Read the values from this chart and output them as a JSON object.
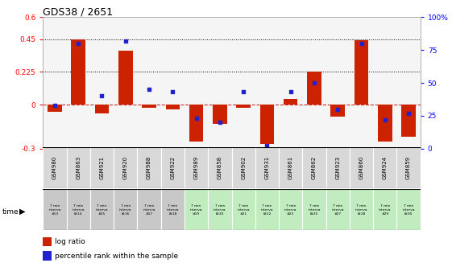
{
  "title": "GDS38 / 2651",
  "categories": [
    "GSM980",
    "GSM863",
    "GSM921",
    "GSM920",
    "GSM988",
    "GSM922",
    "GSM989",
    "GSM858",
    "GSM902",
    "GSM931",
    "GSM861",
    "GSM862",
    "GSM923",
    "GSM860",
    "GSM924",
    "GSM859"
  ],
  "time_lines": [
    [
      "7 min",
      "interva",
      "#13"
    ],
    [
      "7 min",
      "interva",
      "l#14"
    ],
    [
      "7 min",
      "interva",
      "#15"
    ],
    [
      "7 min",
      "interva",
      "l#16"
    ],
    [
      "7 min",
      "interva",
      "#17"
    ],
    [
      "7 min",
      "interva",
      "l#18"
    ],
    [
      "7 min",
      "interva",
      "#19"
    ],
    [
      "7 min",
      "interva",
      "l#20"
    ],
    [
      "7 min",
      "interva",
      "#21"
    ],
    [
      "7 min",
      "interva",
      "l#22"
    ],
    [
      "7 min",
      "interva",
      "#23"
    ],
    [
      "7 min",
      "interva",
      "l#25"
    ],
    [
      "7 min",
      "interva",
      "#27"
    ],
    [
      "7 min",
      "interva",
      "l#28"
    ],
    [
      "7 min",
      "interva",
      "#29"
    ],
    [
      "7 min",
      "interva",
      "l#30"
    ]
  ],
  "log_ratio": [
    -0.05,
    0.45,
    -0.06,
    0.37,
    -0.02,
    -0.03,
    -0.25,
    -0.13,
    -0.02,
    -0.27,
    0.04,
    0.225,
    -0.08,
    0.44,
    -0.25,
    -0.22
  ],
  "percentile_rank": [
    33,
    80,
    40,
    82,
    45,
    43,
    23,
    20,
    43,
    2,
    43,
    50,
    30,
    80,
    22,
    27
  ],
  "bar_color": "#cc2200",
  "square_color": "#2222cc",
  "bg_color": "#f5f5f5",
  "ylim_left": [
    -0.3,
    0.6
  ],
  "ylim_right": [
    0,
    100
  ],
  "hline_y": [
    0.45,
    0.225
  ],
  "zero_line_color": "#cc3333",
  "left_ticks": [
    -0.3,
    0,
    0.225,
    0.45,
    0.6
  ],
  "right_ticks": [
    0,
    25,
    50,
    75,
    100
  ],
  "legend_items": [
    "log ratio",
    "percentile rank within the sample"
  ],
  "legend_colors": [
    "#cc2200",
    "#2222cc"
  ],
  "gsm_bg": "#d8d8d8",
  "time_bg_gray": "#c8c8c8",
  "time_bg_green": "#c0ecc0",
  "n_gray": 6
}
